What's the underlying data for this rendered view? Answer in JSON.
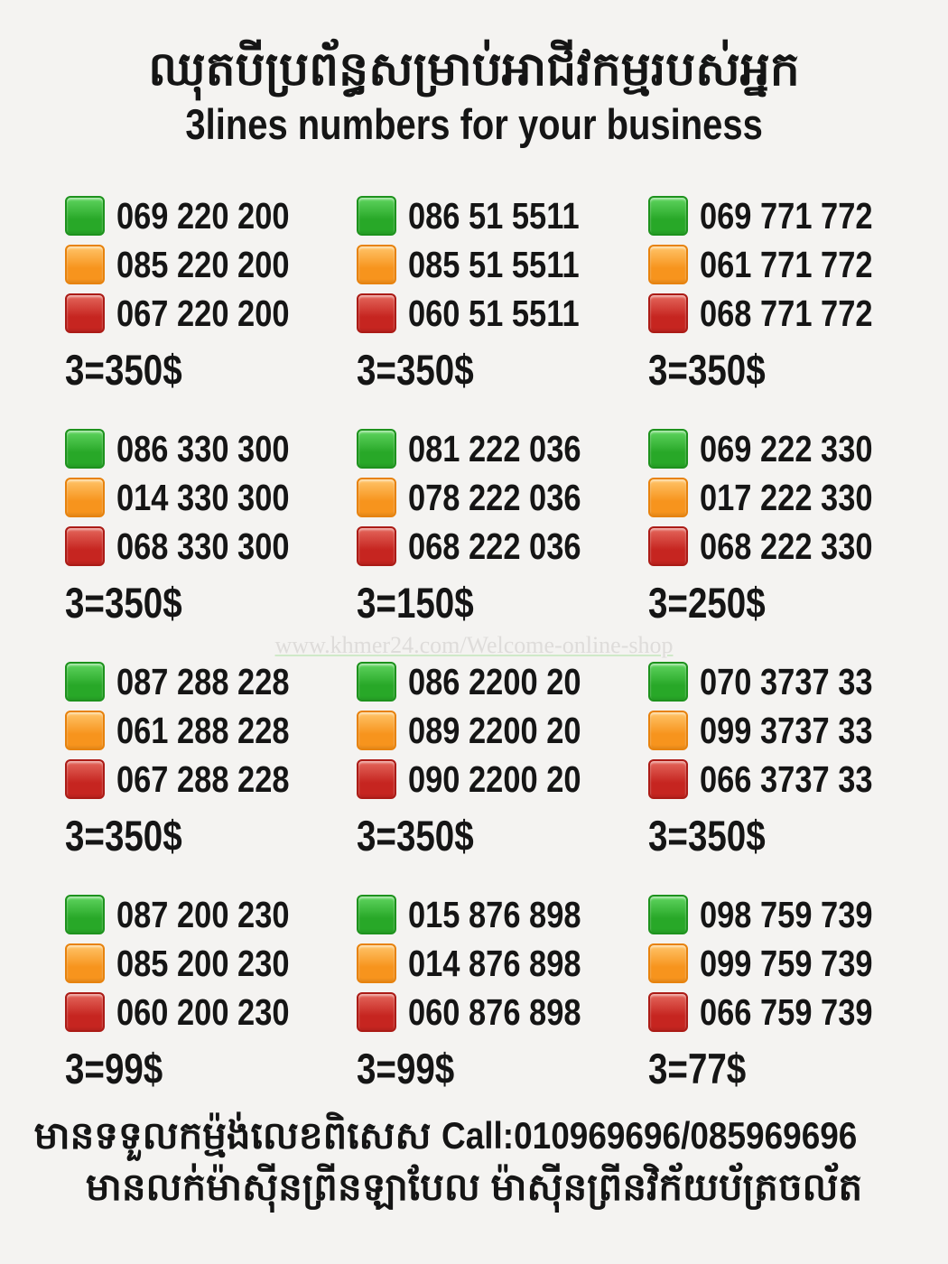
{
  "header": {
    "title_khmer": "ឈុតបីប្រព័ន្ធសម្រាប់អាជីវកម្មរបស់អ្នក",
    "subtitle_en": "3lines numbers for your business"
  },
  "watermark": "www.khmer24.com/Welcome-online-shop",
  "colors": {
    "green": "#28a828",
    "orange": "#f7941d",
    "red": "#c62520",
    "background": "#f4f3f1",
    "text": "#151515"
  },
  "legend": [
    {
      "icon": "green-square-icon",
      "color": "#28a828"
    },
    {
      "icon": "orange-square-icon",
      "color": "#f7941d"
    },
    {
      "icon": "red-square-icon",
      "color": "#c62520"
    }
  ],
  "blocks": [
    {
      "numbers": [
        "069 220 200",
        "085 220 200",
        "067 220 200"
      ],
      "price": "3=350$"
    },
    {
      "numbers": [
        "086 51 5511",
        "085 51 5511",
        "060 51 5511"
      ],
      "price": "3=350$"
    },
    {
      "numbers": [
        "069 771 772",
        "061 771 772",
        "068 771 772"
      ],
      "price": "3=350$"
    },
    {
      "numbers": [
        "086 330 300",
        "014 330 300",
        "068 330 300"
      ],
      "price": "3=350$"
    },
    {
      "numbers": [
        "081 222 036",
        "078 222 036",
        "068 222 036"
      ],
      "price": "3=150$"
    },
    {
      "numbers": [
        "069 222 330",
        "017 222 330",
        "068 222 330"
      ],
      "price": "3=250$"
    },
    {
      "numbers": [
        "087 288 228",
        "061 288 228",
        "067 288 228"
      ],
      "price": "3=350$"
    },
    {
      "numbers": [
        "086 2200 20",
        "089 2200 20",
        "090 2200 20"
      ],
      "price": "3=350$"
    },
    {
      "numbers": [
        "070 3737 33",
        "099 3737 33",
        "066 3737 33"
      ],
      "price": "3=350$"
    },
    {
      "numbers": [
        "087 200 230",
        "085 200 230",
        "060 200 230"
      ],
      "price": "3=99$"
    },
    {
      "numbers": [
        "015 876 898",
        "014 876 898",
        "060 876 898"
      ],
      "price": "3=99$"
    },
    {
      "numbers": [
        "098 759 739",
        "099 759 739",
        "066 759 739"
      ],
      "price": "3=77$"
    }
  ],
  "footer": {
    "order_note_khmer": "មានទទួលកម្ម៉ង់លេខពិសេស",
    "call_label": "Call:010969696/085969696",
    "printer_note_khmer": "មានលក់ម៉ាស៊ីនព្រីនឡាបែល ម៉ាស៊ីនព្រីនវិក័យប័ត្រចល័ត"
  }
}
